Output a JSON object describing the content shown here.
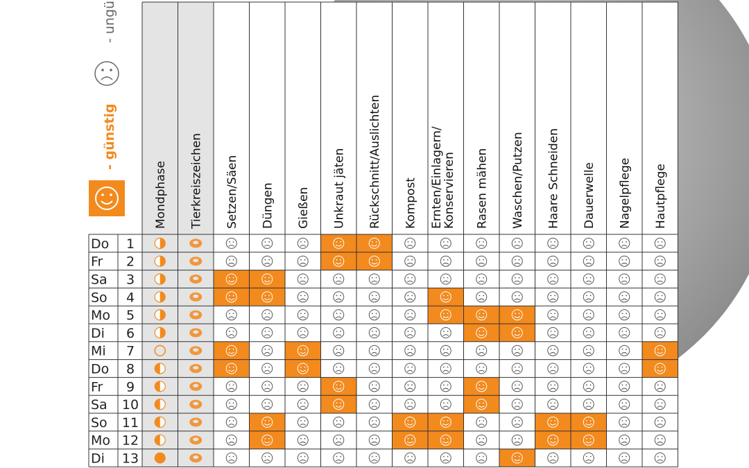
{
  "legend": {
    "good": "- günstig",
    "bad": "- ungünstig"
  },
  "columns": [
    "Mondphase",
    "Tierkreiszeichen",
    "Setzen/Säen",
    "Düngen",
    "Gießen",
    "Unkraut jäten",
    "Rückschnitt/Auslichten",
    "Kompost",
    [
      "Ernten/Einlagern/",
      "Konservieren"
    ],
    "Rasen mähen",
    "Waschen/Putzen",
    "Haare Schneiden",
    "Dauerwelle",
    "Nagelpflege",
    "Hautpflege"
  ],
  "rows": [
    {
      "day": "Do",
      "date": "1",
      "cells": [
        false,
        false,
        false,
        true,
        true,
        false,
        false,
        false,
        false,
        false,
        false,
        false,
        false
      ]
    },
    {
      "day": "Fr",
      "date": "2",
      "cells": [
        false,
        false,
        false,
        true,
        true,
        false,
        false,
        false,
        false,
        false,
        false,
        false,
        false
      ]
    },
    {
      "day": "Sa",
      "date": "3",
      "cells": [
        true,
        true,
        false,
        false,
        false,
        false,
        false,
        false,
        false,
        false,
        false,
        false,
        false
      ]
    },
    {
      "day": "So",
      "date": "4",
      "cells": [
        true,
        true,
        false,
        false,
        false,
        false,
        true,
        false,
        false,
        false,
        false,
        false,
        false
      ]
    },
    {
      "day": "Mo",
      "date": "5",
      "cells": [
        false,
        false,
        false,
        false,
        false,
        false,
        true,
        true,
        true,
        false,
        false,
        false,
        false
      ]
    },
    {
      "day": "Di",
      "date": "6",
      "cells": [
        false,
        false,
        false,
        false,
        false,
        false,
        false,
        true,
        true,
        false,
        false,
        false,
        false
      ]
    },
    {
      "day": "Mi",
      "date": "7",
      "cells": [
        true,
        false,
        true,
        false,
        false,
        false,
        false,
        false,
        false,
        false,
        false,
        false,
        true
      ]
    },
    {
      "day": "Do",
      "date": "8",
      "cells": [
        true,
        false,
        true,
        false,
        false,
        false,
        false,
        false,
        false,
        false,
        false,
        false,
        true
      ]
    },
    {
      "day": "Fr",
      "date": "9",
      "cells": [
        false,
        false,
        false,
        true,
        false,
        false,
        false,
        true,
        false,
        false,
        false,
        false,
        false
      ]
    },
    {
      "day": "Sa",
      "date": "10",
      "cells": [
        false,
        false,
        false,
        true,
        false,
        false,
        false,
        true,
        false,
        false,
        false,
        false,
        false
      ]
    },
    {
      "day": "So",
      "date": "11",
      "cells": [
        false,
        true,
        false,
        false,
        false,
        true,
        true,
        false,
        false,
        true,
        true,
        false,
        false
      ]
    },
    {
      "day": "Mo",
      "date": "12",
      "cells": [
        false,
        true,
        false,
        false,
        false,
        true,
        true,
        false,
        false,
        true,
        true,
        false,
        false
      ]
    },
    {
      "day": "Di",
      "date": "13",
      "cells": [
        false,
        false,
        false,
        false,
        false,
        false,
        false,
        false,
        true,
        false,
        false,
        false,
        false
      ]
    }
  ]
}
